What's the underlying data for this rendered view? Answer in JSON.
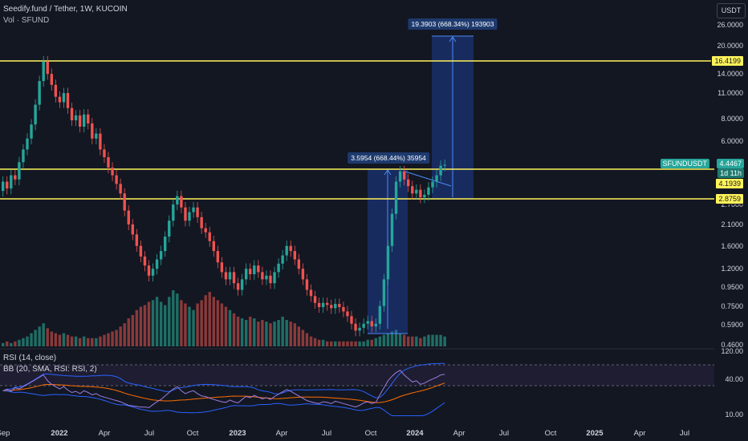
{
  "header": {
    "symbol_title": "Seedify.fund / Tether, 1W, KUCOIN",
    "volume_label": "Vol · SFUND",
    "currency_button": "USDT"
  },
  "price_axis": {
    "labels": [
      "26.0000",
      "20.0000",
      "14.0000",
      "11.0000",
      "8.0000",
      "6.0000",
      "2.7000",
      "2.1000",
      "1.6000",
      "1.2000",
      "0.9500",
      "0.7500",
      "0.5900",
      "0.4600"
    ]
  },
  "time_axis": {
    "labels": [
      {
        "text": "Sep",
        "bold": false
      },
      {
        "text": "2022",
        "bold": true
      },
      {
        "text": "Apr",
        "bold": false
      },
      {
        "text": "Jul",
        "bold": false
      },
      {
        "text": "Oct",
        "bold": false
      },
      {
        "text": "2023",
        "bold": true
      },
      {
        "text": "Apr",
        "bold": false
      },
      {
        "text": "Jul",
        "bold": false
      },
      {
        "text": "Oct",
        "bold": false
      },
      {
        "text": "2024",
        "bold": true
      },
      {
        "text": "Apr",
        "bold": false
      },
      {
        "text": "Jul",
        "bold": false
      },
      {
        "text": "Oct",
        "bold": false
      },
      {
        "text": "2025",
        "bold": true
      },
      {
        "text": "Apr",
        "bold": false
      },
      {
        "text": "Jul",
        "bold": false
      }
    ]
  },
  "price_tags": {
    "resistance": "16.4199",
    "symbol": "SFUNDUSDT",
    "last_price": "4.4467",
    "countdown": "1d 11h",
    "mid_level": "4.1939",
    "support": "2.8759"
  },
  "measurements": {
    "first": "3.5954 (668.44%) 35954",
    "second": "19.3903 (668.34%) 193903"
  },
  "rsi": {
    "label": "RSI (14, close)",
    "bb_label": "BB (20, SMA, RSI: RSI, 2)",
    "axis_labels": [
      "120.00",
      "40.00",
      "10.00"
    ]
  },
  "colors": {
    "background": "#131722",
    "up": "#26a69a",
    "down": "#ef5350",
    "level_line": "#fff35a",
    "measure_box": "#2962ff",
    "rsi_line": "#7e57c2",
    "bb_basis": "#ff6d00",
    "bb_band": "#2962ff"
  },
  "chart_data": {
    "type": "candlestick",
    "series": [
      {
        "name": "Seedify.fund / Tether, 1W, KUCOIN",
        "values": [
          [
            3.2,
            3.6
          ],
          [
            3.6,
            3.3
          ],
          [
            3.3,
            3.9
          ],
          [
            3.9,
            3.7
          ],
          [
            3.7,
            4.6
          ],
          [
            4.6,
            5.4
          ],
          [
            5.4,
            6.2
          ],
          [
            6.2,
            7.4
          ],
          [
            7.4,
            9.5
          ],
          [
            9.5,
            12.8
          ],
          [
            12.8,
            16.4
          ],
          [
            16.4,
            14.0
          ],
          [
            14.0,
            12.2
          ],
          [
            12.2,
            10.5
          ],
          [
            10.5,
            9.8
          ],
          [
            9.8,
            11.0
          ],
          [
            11.0,
            9.1
          ],
          [
            9.1,
            7.8
          ],
          [
            7.8,
            8.3
          ],
          [
            8.3,
            7.2
          ],
          [
            7.2,
            8.4
          ],
          [
            8.4,
            7.5
          ],
          [
            7.5,
            6.2
          ],
          [
            6.2,
            6.6
          ],
          [
            6.6,
            5.4
          ],
          [
            5.4,
            4.9
          ],
          [
            4.9,
            4.3
          ],
          [
            4.3,
            3.9
          ],
          [
            3.9,
            3.5
          ],
          [
            3.5,
            3.1
          ],
          [
            3.1,
            2.5
          ],
          [
            2.5,
            2.1
          ],
          [
            2.1,
            1.85
          ],
          [
            1.85,
            1.6
          ],
          [
            1.6,
            1.4
          ],
          [
            1.4,
            1.25
          ],
          [
            1.25,
            1.1
          ],
          [
            1.1,
            1.2
          ],
          [
            1.2,
            1.35
          ],
          [
            1.35,
            1.5
          ],
          [
            1.5,
            1.8
          ],
          [
            1.8,
            2.2
          ],
          [
            2.2,
            2.7
          ],
          [
            2.7,
            3.0
          ],
          [
            3.0,
            2.6
          ],
          [
            2.6,
            2.2
          ],
          [
            2.2,
            2.45
          ],
          [
            2.45,
            2.6
          ],
          [
            2.6,
            2.3
          ],
          [
            2.3,
            2.0
          ],
          [
            2.0,
            1.9
          ],
          [
            1.9,
            1.7
          ],
          [
            1.7,
            1.5
          ],
          [
            1.5,
            1.3
          ],
          [
            1.3,
            1.15
          ],
          [
            1.15,
            1.05
          ],
          [
            1.05,
            1.15
          ],
          [
            1.15,
            1.0
          ],
          [
            1.0,
            0.92
          ],
          [
            0.92,
            1.05
          ],
          [
            1.05,
            1.2
          ],
          [
            1.2,
            1.12
          ],
          [
            1.12,
            1.25
          ],
          [
            1.25,
            1.15
          ],
          [
            1.15,
            1.05
          ],
          [
            1.05,
            1.1
          ],
          [
            1.1,
            1.0
          ],
          [
            1.0,
            1.15
          ],
          [
            1.15,
            1.28
          ],
          [
            1.28,
            1.42
          ],
          [
            1.42,
            1.6
          ],
          [
            1.6,
            1.5
          ],
          [
            1.5,
            1.35
          ],
          [
            1.35,
            1.2
          ],
          [
            1.2,
            1.05
          ],
          [
            1.05,
            0.92
          ],
          [
            0.92,
            0.85
          ],
          [
            0.85,
            0.78
          ],
          [
            0.78,
            0.74
          ],
          [
            0.74,
            0.78
          ],
          [
            0.78,
            0.76
          ],
          [
            0.76,
            0.73
          ],
          [
            0.73,
            0.77
          ],
          [
            0.77,
            0.74
          ],
          [
            0.74,
            0.7
          ],
          [
            0.7,
            0.66
          ],
          [
            0.66,
            0.6
          ],
          [
            0.6,
            0.55
          ],
          [
            0.55,
            0.57
          ],
          [
            0.57,
            0.6
          ],
          [
            0.6,
            0.62
          ],
          [
            0.62,
            0.58
          ],
          [
            0.58,
            0.6
          ],
          [
            0.6,
            0.75
          ],
          [
            0.75,
            1.05
          ],
          [
            1.05,
            1.6
          ],
          [
            1.6,
            2.4
          ],
          [
            2.4,
            3.6
          ],
          [
            3.6,
            4.1
          ],
          [
            4.1,
            3.7
          ],
          [
            3.7,
            3.4
          ],
          [
            3.4,
            3.1
          ],
          [
            3.1,
            3.25
          ],
          [
            3.25,
            2.95
          ],
          [
            2.95,
            3.05
          ],
          [
            3.05,
            3.35
          ],
          [
            3.35,
            3.6
          ],
          [
            3.6,
            3.9
          ],
          [
            3.9,
            4.4
          ],
          [
            4.4,
            4.45
          ]
        ]
      }
    ],
    "volume": [
      2,
      3,
      2,
      3,
      4,
      5,
      6,
      8,
      10,
      12,
      14,
      11,
      9,
      8,
      7,
      8,
      7,
      6,
      6,
      5,
      6,
      5,
      5,
      5,
      6,
      7,
      8,
      9,
      10,
      12,
      14,
      17,
      19,
      22,
      24,
      25,
      27,
      28,
      30,
      27,
      25,
      30,
      34,
      32,
      28,
      26,
      24,
      22,
      26,
      28,
      31,
      33,
      30,
      28,
      26,
      24,
      22,
      20,
      18,
      17,
      16,
      18,
      17,
      15,
      16,
      15,
      14,
      15,
      16,
      18,
      16,
      15,
      14,
      12,
      10,
      8,
      6,
      5,
      4,
      4,
      3,
      3,
      3,
      3,
      3,
      3,
      3,
      3,
      3,
      3,
      4,
      4,
      5,
      6,
      7,
      8,
      9,
      10,
      8,
      7,
      6,
      6,
      6,
      5,
      6,
      7,
      7,
      7,
      7,
      6
    ],
    "rsi": [
      55,
      57,
      54,
      60,
      58,
      62,
      66,
      70,
      74,
      78,
      82,
      72,
      66,
      62,
      58,
      62,
      56,
      52,
      54,
      50,
      55,
      52,
      48,
      50,
      46,
      44,
      42,
      40,
      38,
      36,
      33,
      30,
      29,
      28,
      27,
      27,
      26,
      31,
      36,
      40,
      46,
      52,
      58,
      62,
      55,
      50,
      53,
      55,
      50,
      46,
      45,
      42,
      40,
      38,
      36,
      35,
      39,
      36,
      34,
      40,
      45,
      43,
      47,
      44,
      41,
      43,
      40,
      45,
      49,
      53,
      57,
      54,
      50,
      46,
      42,
      38,
      36,
      34,
      33,
      36,
      35,
      33,
      37,
      35,
      33,
      31,
      29,
      27,
      30,
      34,
      36,
      33,
      35,
      48,
      60,
      72,
      80,
      86,
      90,
      82,
      76,
      70,
      72,
      66,
      68,
      72,
      75,
      78,
      82,
      83
    ],
    "levels": {
      "resistance": 16.4199,
      "mid": 4.1939,
      "support": 2.8759
    },
    "last_price": 4.4467,
    "ylim": [
      0.46,
      26.0
    ],
    "yscale": "log",
    "grid": false
  }
}
